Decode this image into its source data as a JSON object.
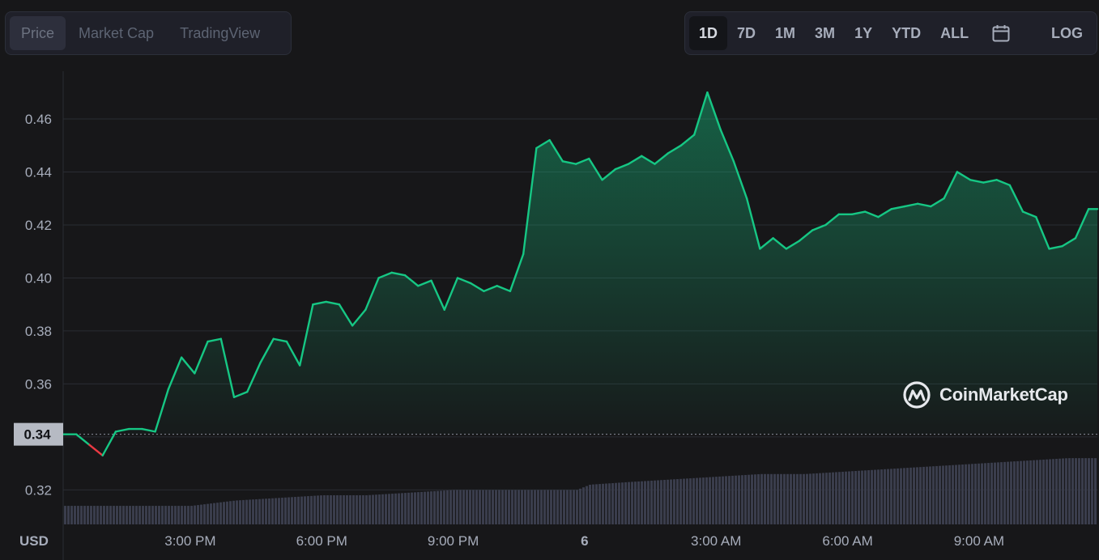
{
  "tabs": [
    {
      "label": "Price",
      "active": true
    },
    {
      "label": "Market Cap",
      "active": false
    },
    {
      "label": "TradingView",
      "active": false
    }
  ],
  "ranges": [
    {
      "label": "1D",
      "active": true
    },
    {
      "label": "7D",
      "active": false
    },
    {
      "label": "1M",
      "active": false
    },
    {
      "label": "3M",
      "active": false
    },
    {
      "label": "1Y",
      "active": false
    },
    {
      "label": "YTD",
      "active": false
    },
    {
      "label": "ALL",
      "active": false
    }
  ],
  "calendar_icon": "calendar-icon",
  "log_label": "LOG",
  "watermark": "CoinMarketCap",
  "currency_label": "USD",
  "colors": {
    "up": "#16c784",
    "down": "#ea3943",
    "background": "#171719",
    "volume": "#3a3d4c"
  },
  "chart_data": {
    "type": "area",
    "xlabel": "",
    "ylabel": "USD",
    "ylim": [
      0.307,
      0.478
    ],
    "yticks": [
      "0.32",
      "0.34",
      "0.36",
      "0.38",
      "0.40",
      "0.42",
      "0.44",
      "0.46"
    ],
    "xticks": [
      "3:00 PM",
      "6:00 PM",
      "9:00 PM",
      "6",
      "3:00 AM",
      "6:00 AM",
      "9:00 AM"
    ],
    "xtick_hours": [
      15,
      18,
      21,
      24,
      27,
      30,
      33
    ],
    "x_range_hours": [
      12.1,
      35.7
    ],
    "baseline": 0.341,
    "baseline_label": "0.34",
    "grid": true,
    "series": [
      {
        "x": [
          12.1,
          12.4,
          12.7,
          13.0,
          13.3,
          13.6,
          13.9,
          14.2,
          14.5,
          14.8,
          15.1,
          15.4,
          15.7,
          16.0,
          16.3,
          16.6,
          16.9,
          17.2,
          17.5,
          17.8,
          18.1,
          18.4,
          18.7,
          19.0,
          19.3,
          19.6,
          19.9,
          20.2,
          20.5,
          20.8,
          21.1,
          21.4,
          21.7,
          22.0,
          22.3,
          22.6,
          22.9,
          23.2,
          23.5,
          23.8,
          24.1,
          24.4,
          24.7,
          25.0,
          25.3,
          25.6,
          25.9,
          26.2,
          26.5,
          26.8,
          27.1,
          27.4,
          27.7,
          28.0,
          28.3,
          28.6,
          28.9,
          29.2,
          29.5,
          29.8,
          30.1,
          30.4,
          30.7,
          31.0,
          31.3,
          31.6,
          31.9,
          32.2,
          32.5,
          32.8,
          33.1,
          33.4,
          33.7,
          34.0,
          34.3,
          34.6,
          34.9,
          35.2,
          35.5,
          35.7
        ],
        "values": [
          0.341,
          0.341,
          0.337,
          0.333,
          0.342,
          0.343,
          0.343,
          0.342,
          0.358,
          0.37,
          0.364,
          0.376,
          0.377,
          0.355,
          0.357,
          0.368,
          0.377,
          0.376,
          0.367,
          0.39,
          0.391,
          0.39,
          0.382,
          0.388,
          0.4,
          0.402,
          0.401,
          0.397,
          0.399,
          0.388,
          0.4,
          0.398,
          0.395,
          0.397,
          0.395,
          0.409,
          0.449,
          0.452,
          0.444,
          0.443,
          0.445,
          0.437,
          0.441,
          0.443,
          0.446,
          0.443,
          0.447,
          0.45,
          0.454,
          0.47,
          0.456,
          0.444,
          0.43,
          0.411,
          0.415,
          0.411,
          0.414,
          0.418,
          0.42,
          0.424,
          0.424,
          0.425,
          0.423,
          0.426,
          0.427,
          0.428,
          0.427,
          0.43,
          0.44,
          0.437,
          0.436,
          0.437,
          0.435,
          0.425,
          0.423,
          0.411,
          0.412,
          0.415,
          0.426,
          0.426
        ]
      }
    ],
    "volume": {
      "x": [
        12.1,
        13.0,
        14.0,
        15.0,
        16.0,
        17.0,
        18.0,
        19.0,
        20.0,
        21.0,
        22.0,
        23.0,
        23.8,
        24.1,
        25.0,
        26.0,
        27.0,
        28.0,
        29.0,
        30.0,
        31.0,
        32.0,
        33.0,
        34.0,
        35.0,
        35.7
      ],
      "values": [
        0.314,
        0.314,
        0.314,
        0.314,
        0.316,
        0.317,
        0.318,
        0.318,
        0.319,
        0.32,
        0.32,
        0.32,
        0.32,
        0.322,
        0.323,
        0.324,
        0.325,
        0.326,
        0.326,
        0.327,
        0.328,
        0.329,
        0.33,
        0.331,
        0.332,
        0.332
      ]
    }
  }
}
